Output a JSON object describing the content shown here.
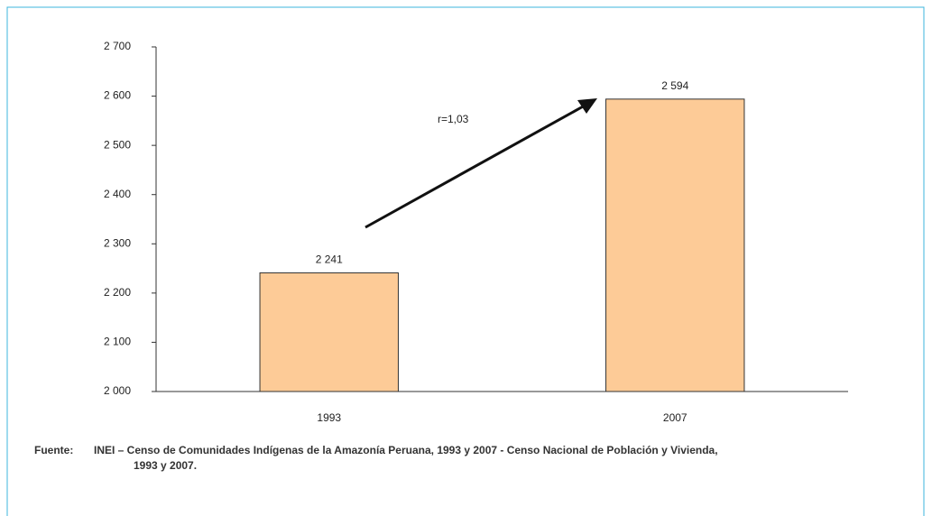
{
  "chart_data": {
    "type": "bar",
    "categories": [
      "1993",
      "2007"
    ],
    "values": [
      2241,
      2594
    ],
    "value_labels": [
      "2 241",
      "2 594"
    ],
    "color": "#fdcb97",
    "ylim": [
      2000,
      2700
    ],
    "yticks": [
      {
        "value": 2000,
        "label": "2 000"
      },
      {
        "value": 2100,
        "label": "2 100"
      },
      {
        "value": 2200,
        "label": "2 200"
      },
      {
        "value": 2300,
        "label": "2 300"
      },
      {
        "value": 2400,
        "label": "2 400"
      },
      {
        "value": 2500,
        "label": "2 500"
      },
      {
        "value": 2600,
        "label": "2 600"
      },
      {
        "value": 2700,
        "label": "2 700"
      }
    ],
    "grid": false,
    "annotation": "r=1,03",
    "source_label": "Fuente:",
    "source_lines": [
      "INEI – Censo de Comunidades Indígenas de la Amazonía Peruana, 1993 y 2007 - Censo Nacional de Población y Vivienda,",
      "1993 y 2007."
    ]
  }
}
